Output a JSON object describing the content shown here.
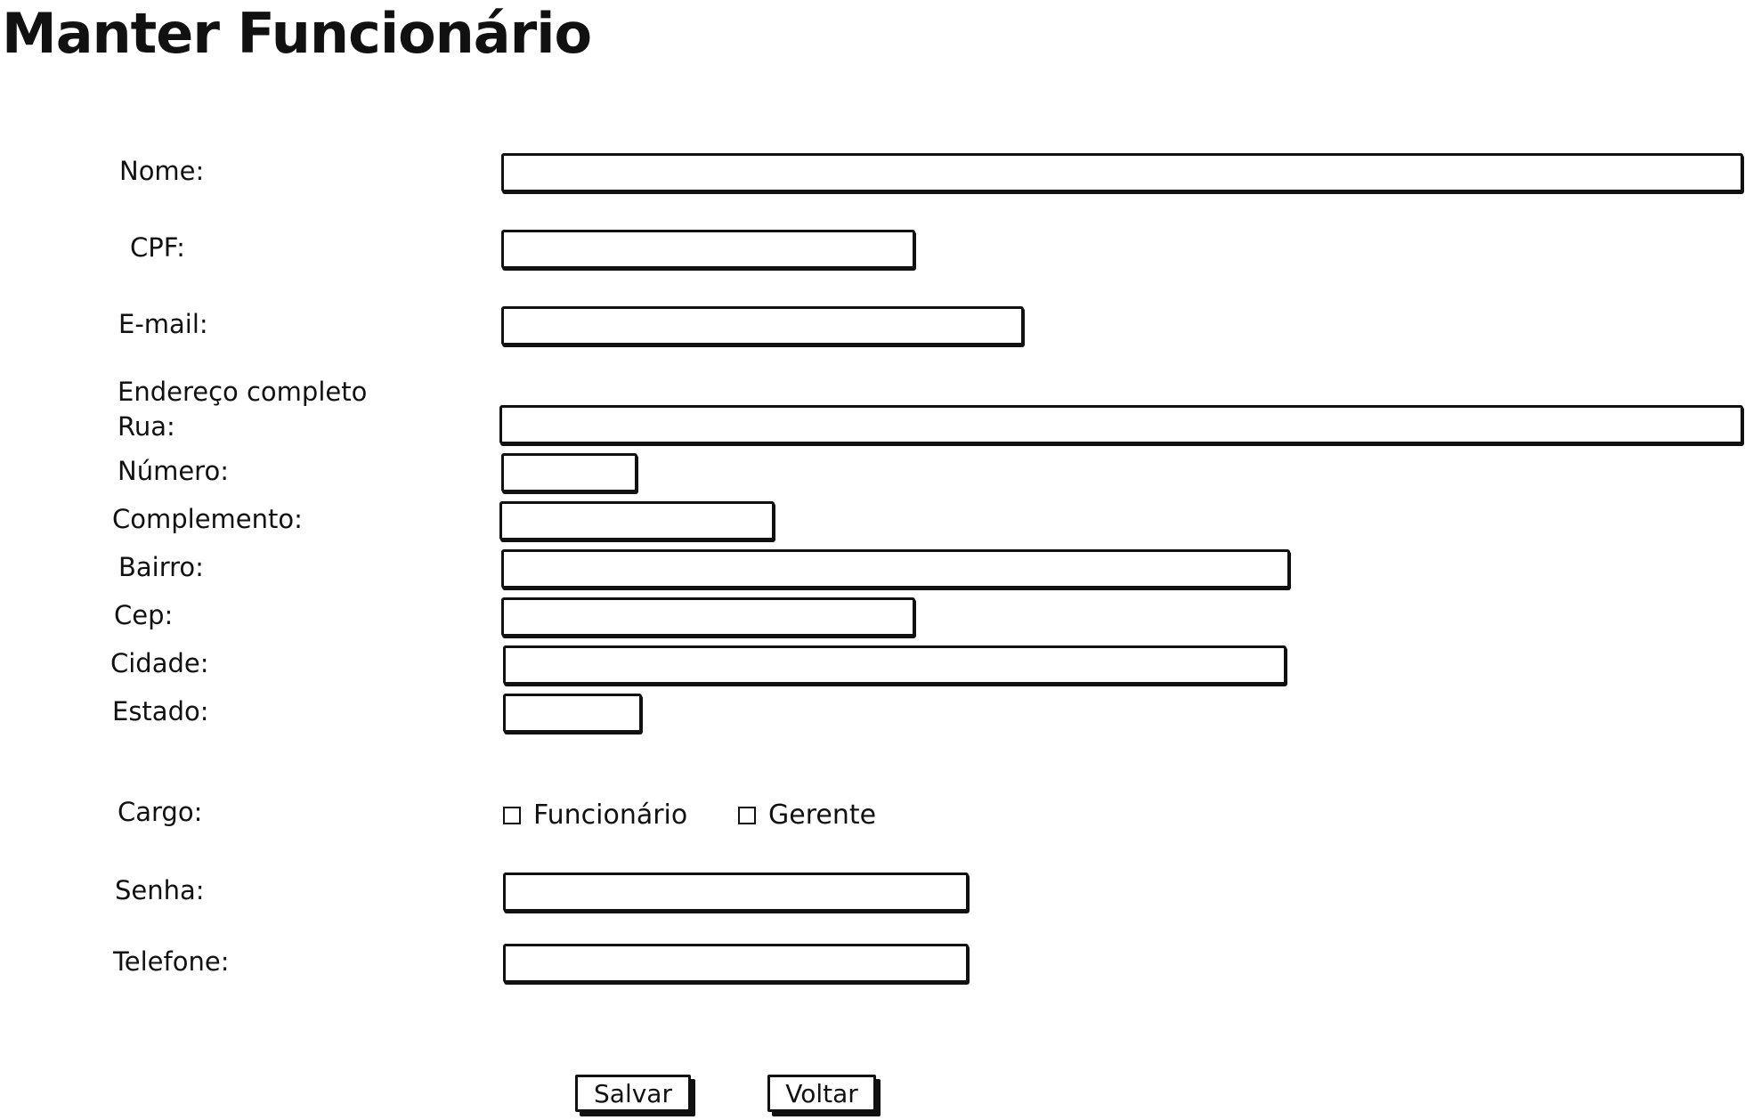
{
  "page": {
    "title": "Manter Funcionário"
  },
  "form": {
    "nome_label": "Nome:",
    "cpf_label": "CPF:",
    "email_label": "E-mail:",
    "endereco_heading": "Endereço completo",
    "rua_label": "Rua:",
    "numero_label": "Número:",
    "complemento_label": "Complemento:",
    "bairro_label": "Bairro:",
    "cep_label": "Cep:",
    "cidade_label": "Cidade:",
    "estado_label": "Estado:",
    "cargo_label": "Cargo:",
    "cargo_options": [
      "Funcionário",
      "Gerente"
    ],
    "senha_label": "Senha:",
    "telefone_label": "Telefone:"
  },
  "actions": {
    "save_label": "Salvar",
    "back_label": "Voltar"
  }
}
